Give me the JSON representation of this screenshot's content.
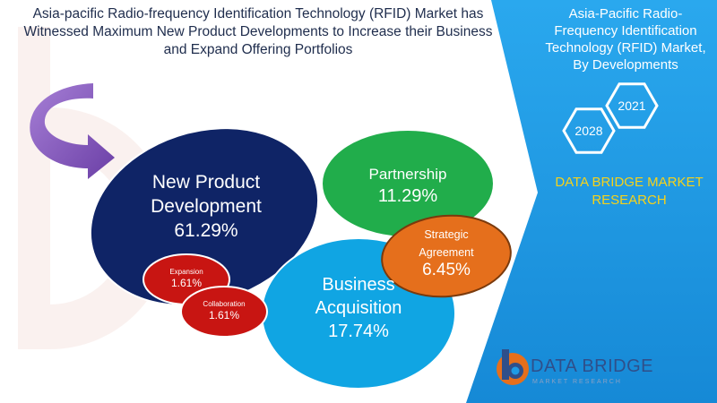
{
  "headline": {
    "lines": [
      "Asia-pacific Radio-frequency Identification Technology (RFID) Market has",
      "Witnessed Maximum New Product Developments to Increase their Business",
      "and Expand Offering Portfolios"
    ]
  },
  "side_panel": {
    "title_lines": [
      "Asia-Pacific Radio-",
      "Frequency Identification",
      "Technology (RFID) Market,",
      "By Developments"
    ],
    "years": [
      "2021",
      "2028"
    ],
    "brand_lines": [
      "DATA BRIDGE MARKET",
      "RESEARCH"
    ],
    "logo_text": "DATA BRIDGE",
    "logo_subtext": "MARKET RESEARCH"
  },
  "colors": {
    "navy": "#0f2466",
    "green": "#21ad4b",
    "orange": "#e56f1c",
    "sky": "#10a5e3",
    "red": "#c81512",
    "panel_blue": "#1e9be6",
    "brand_yellow": "#f6d21a",
    "arrow_purple": "#8a5cc2"
  },
  "chart_data": {
    "type": "bubble",
    "title": "Asia-Pacific Radio-Frequency Identification Technology (RFID) Market, By Developments",
    "unit": "%",
    "categories": [
      "New Product Development",
      "Partnership",
      "Strategic Agreement",
      "Business Acquisition",
      "Expansion",
      "Collaboration"
    ],
    "values": [
      61.29,
      11.29,
      6.45,
      17.74,
      1.61,
      1.61
    ],
    "labels": [
      {
        "lines": [
          "New Product",
          "Development"
        ],
        "value": "61.29%"
      },
      {
        "lines": [
          "Partnership"
        ],
        "value": "11.29%"
      },
      {
        "lines": [
          "Strategic",
          "Agreement"
        ],
        "value": "6.45%"
      },
      {
        "lines": [
          "Business",
          "Acquisition"
        ],
        "value": "17.74%"
      },
      {
        "lines": [
          "Expansion"
        ],
        "value": "1.61%"
      },
      {
        "lines": [
          "Collaboration"
        ],
        "value": "1.61%"
      }
    ]
  }
}
